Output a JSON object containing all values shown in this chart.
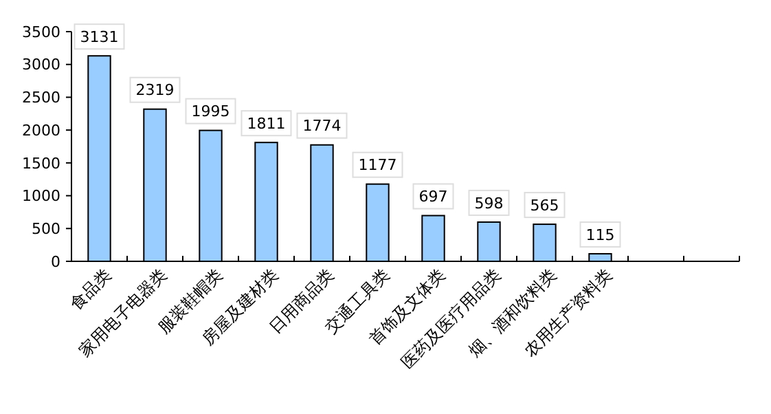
{
  "chart_data": {
    "type": "bar",
    "categories": [
      "食品类",
      "家用电子电器类",
      "服装鞋帽类",
      "房屋及建材类",
      "日用商品类",
      "交通工具类",
      "首饰及文体类",
      "医药及医疗用品类",
      "烟、酒和饮料类",
      "农用生产资料类",
      null,
      null
    ],
    "values": [
      3131,
      2319,
      1995,
      1811,
      1774,
      1177,
      697,
      598,
      565,
      115,
      null,
      null
    ],
    "color": "#99ccff",
    "ylim": [
      0,
      3500
    ],
    "yticks": [
      0,
      500,
      1000,
      1500,
      2000,
      2500,
      3000,
      3500
    ],
    "data_labels": true
  }
}
